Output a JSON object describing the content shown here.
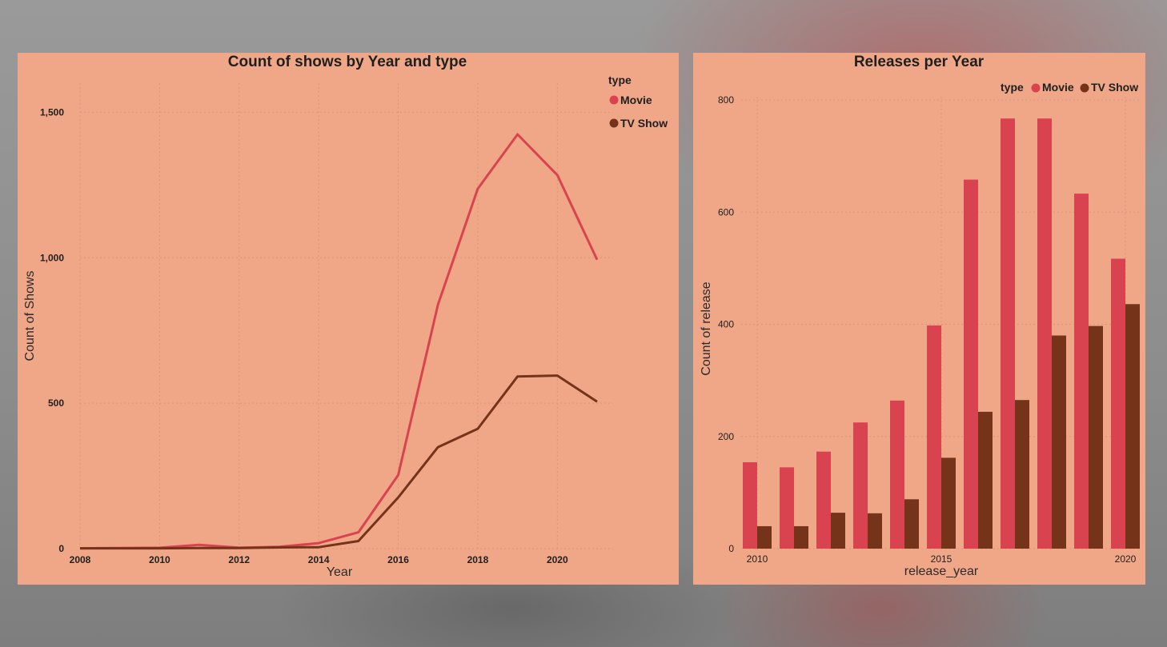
{
  "colors": {
    "movie": "#d9434f",
    "tv_show": "#75331a",
    "panel": "#f0a788"
  },
  "chart_data": [
    {
      "type": "line",
      "title": "Count of shows by Year and type",
      "xlabel": "Year",
      "ylabel": "Count of Shows",
      "xlim": [
        2008,
        2021
      ],
      "ylim": [
        0,
        1600
      ],
      "x_ticks": [
        2008,
        2010,
        2012,
        2014,
        2016,
        2018,
        2020
      ],
      "y_ticks": [
        0,
        500,
        1000,
        1500
      ],
      "y_tick_labels": [
        "0",
        "500",
        "1,000",
        "1,500"
      ],
      "legend": {
        "title": "type",
        "position": "top-right"
      },
      "x": [
        2008,
        2009,
        2010,
        2011,
        2012,
        2013,
        2014,
        2015,
        2016,
        2017,
        2018,
        2019,
        2020,
        2021
      ],
      "series": [
        {
          "name": "Movie",
          "color": "#d9434f",
          "values": [
            1,
            2,
            3,
            13,
            3,
            6,
            19,
            56,
            253,
            839,
            1237,
            1424,
            1284,
            993
          ]
        },
        {
          "name": "TV Show",
          "color": "#75331a",
          "values": [
            1,
            1,
            1,
            2,
            2,
            4,
            5,
            26,
            176,
            349,
            412,
            592,
            595,
            505
          ]
        }
      ],
      "grid": true
    },
    {
      "type": "bar",
      "title": "Releases per Year",
      "xlabel": "release_year",
      "ylabel": "Count of release",
      "ylim": [
        0,
        820
      ],
      "y_ticks": [
        0,
        200,
        400,
        600,
        800
      ],
      "x_tick_labels": [
        "2010",
        "2015",
        "2020"
      ],
      "legend": {
        "title": "type",
        "position": "top-right"
      },
      "categories": [
        2010,
        2011,
        2012,
        2013,
        2014,
        2015,
        2016,
        2017,
        2018,
        2019,
        2020
      ],
      "series": [
        {
          "name": "Movie",
          "color": "#d9434f",
          "values": [
            154,
            145,
            173,
            225,
            264,
            398,
            658,
            767,
            767,
            633,
            517
          ]
        },
        {
          "name": "TV Show",
          "color": "#75331a",
          "values": [
            40,
            40,
            64,
            63,
            88,
            162,
            244,
            265,
            380,
            397,
            436
          ]
        }
      ],
      "grid": true
    }
  ]
}
